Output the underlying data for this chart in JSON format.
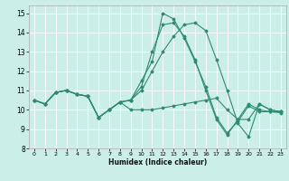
{
  "title": "",
  "xlabel": "Humidex (Indice chaleur)",
  "bg_color": "#cceee8",
  "line_color": "#2e8b6e",
  "grid_color": "#ffffff",
  "xlim": [
    -0.5,
    23.5
  ],
  "ylim": [
    8.0,
    15.4
  ],
  "yticks": [
    8,
    9,
    10,
    11,
    12,
    13,
    14,
    15
  ],
  "xticks": [
    0,
    1,
    2,
    3,
    4,
    5,
    6,
    7,
    8,
    9,
    10,
    11,
    12,
    13,
    14,
    15,
    16,
    17,
    18,
    19,
    20,
    21,
    22,
    23
  ],
  "series": [
    [
      10.5,
      10.3,
      10.9,
      11.0,
      10.8,
      10.7,
      9.6,
      10.0,
      10.4,
      10.0,
      10.0,
      10.0,
      10.1,
      10.2,
      10.3,
      10.4,
      10.5,
      10.6,
      10.0,
      9.5,
      9.5,
      10.3,
      10.0,
      9.9
    ],
    [
      10.5,
      10.3,
      10.9,
      11.0,
      10.8,
      10.7,
      9.6,
      10.0,
      10.4,
      10.5,
      11.0,
      12.0,
      13.0,
      13.8,
      14.4,
      14.5,
      14.1,
      12.6,
      11.0,
      9.3,
      8.6,
      10.3,
      10.0,
      9.9
    ],
    [
      10.5,
      10.3,
      10.9,
      11.0,
      10.8,
      10.7,
      9.6,
      10.0,
      10.4,
      10.5,
      11.2,
      13.0,
      14.4,
      14.5,
      13.8,
      12.6,
      11.0,
      9.5,
      8.7,
      9.5,
      10.3,
      10.0,
      9.9,
      9.9
    ],
    [
      10.5,
      10.3,
      10.9,
      11.0,
      10.8,
      10.7,
      9.6,
      10.0,
      10.4,
      10.5,
      11.5,
      12.5,
      15.0,
      14.7,
      13.7,
      12.5,
      11.2,
      9.6,
      8.8,
      9.4,
      10.2,
      9.9,
      9.9,
      9.85
    ]
  ]
}
